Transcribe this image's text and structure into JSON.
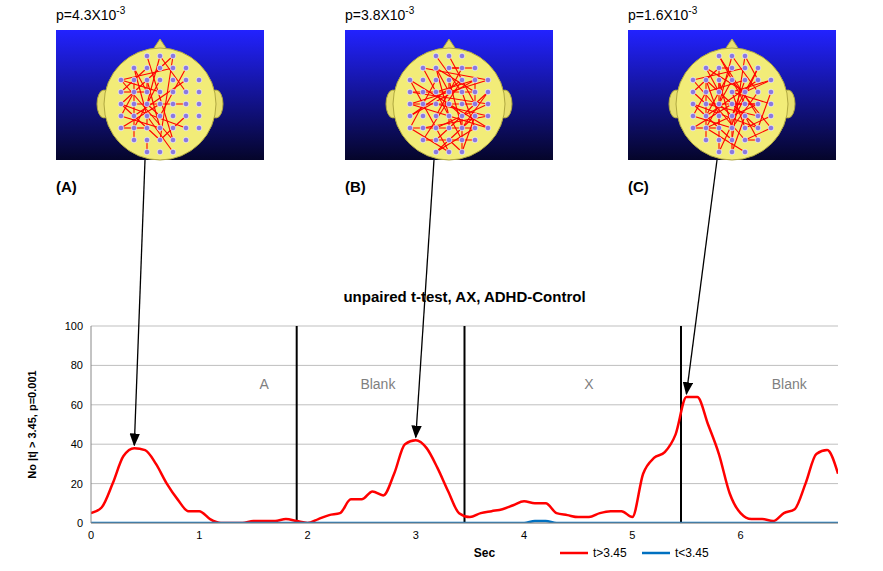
{
  "panels": [
    {
      "letter": "(A)",
      "p_value": {
        "text": "p=4.3X10",
        "exponent": "-3"
      },
      "arrow_to": {
        "x": 0.4,
        "y": 38
      }
    },
    {
      "letter": "(B)",
      "p_value": {
        "text": "p=3.8X10",
        "exponent": "-3"
      },
      "arrow_to": {
        "x": 3.0,
        "y": 42
      }
    },
    {
      "letter": "(C)",
      "p_value": {
        "text": "p=1.6X10",
        "exponent": "-3"
      },
      "arrow_to": {
        "x": 5.5,
        "y": 64
      }
    }
  ],
  "chart_data": {
    "type": "line",
    "title": "unpaired t-test, AX, ADHD-Control",
    "x_label": "Sec",
    "y_label": "No |t| > 3.45, p=0.001",
    "x": [
      0,
      0.1,
      0.2,
      0.3,
      0.4,
      0.5,
      0.6,
      0.7,
      0.8,
      0.9,
      1.0,
      1.1,
      1.2,
      1.3,
      1.4,
      1.5,
      1.6,
      1.7,
      1.8,
      1.9,
      2.0,
      2.1,
      2.2,
      2.3,
      2.4,
      2.5,
      2.6,
      2.7,
      2.8,
      2.9,
      3.0,
      3.1,
      3.2,
      3.3,
      3.4,
      3.5,
      3.6,
      3.7,
      3.8,
      3.9,
      4.0,
      4.1,
      4.2,
      4.3,
      4.4,
      4.5,
      4.6,
      4.7,
      4.8,
      4.9,
      5.0,
      5.1,
      5.2,
      5.3,
      5.4,
      5.5,
      5.6,
      5.7,
      5.8,
      5.9,
      6.0,
      6.1,
      6.2,
      6.3,
      6.4,
      6.5,
      6.6,
      6.7,
      6.8,
      6.9
    ],
    "series": [
      {
        "name": "t>3.45",
        "color": "#ff0000",
        "values": [
          5,
          8,
          20,
          34,
          38,
          37,
          30,
          20,
          12,
          6,
          6,
          2,
          0,
          0,
          0,
          1,
          1,
          1,
          2,
          1,
          0,
          2,
          4,
          5,
          12,
          12,
          16,
          14,
          25,
          40,
          42,
          38,
          28,
          16,
          5,
          3,
          5,
          6,
          7,
          9,
          11,
          10,
          10,
          5,
          4,
          3,
          3,
          5,
          6,
          6,
          3,
          25,
          33,
          36,
          45,
          64,
          64,
          50,
          35,
          15,
          5,
          2,
          2,
          1,
          5,
          7,
          20,
          35,
          37,
          25
        ]
      },
      {
        "name": "t<3.45",
        "color": "#0070c0",
        "values": [
          0,
          0,
          0,
          0,
          0,
          0,
          0,
          0,
          0,
          0,
          0,
          0,
          0,
          0,
          0,
          0,
          0,
          0,
          0,
          0,
          0,
          0,
          0,
          0,
          0,
          0,
          0,
          0,
          0,
          0,
          0,
          0,
          0,
          0,
          0,
          0,
          0,
          0,
          0,
          0,
          0,
          1,
          1,
          0,
          0,
          0,
          0,
          0,
          0,
          0,
          0,
          0,
          0,
          0,
          0,
          0,
          0,
          0,
          0,
          0,
          0,
          0,
          0,
          0,
          0,
          0,
          0,
          0,
          0,
          0
        ]
      }
    ],
    "xlim": [
      0,
      6.9
    ],
    "xticks": [
      0,
      1,
      2,
      3,
      4,
      5,
      6
    ],
    "ylim": [
      0,
      100
    ],
    "yticks": [
      0,
      20,
      40,
      60,
      80,
      100
    ],
    "grid": true,
    "legend": "bottom",
    "phase_boundaries": [
      1.9,
      3.45,
      5.45
    ],
    "phases": [
      {
        "label": "A",
        "x": 1.6,
        "y": 68
      },
      {
        "label": "Blank",
        "x": 2.65,
        "y": 68
      },
      {
        "label": "X",
        "x": 4.6,
        "y": 68
      },
      {
        "label": "Blank",
        "x": 6.45,
        "y": 68
      }
    ]
  }
}
